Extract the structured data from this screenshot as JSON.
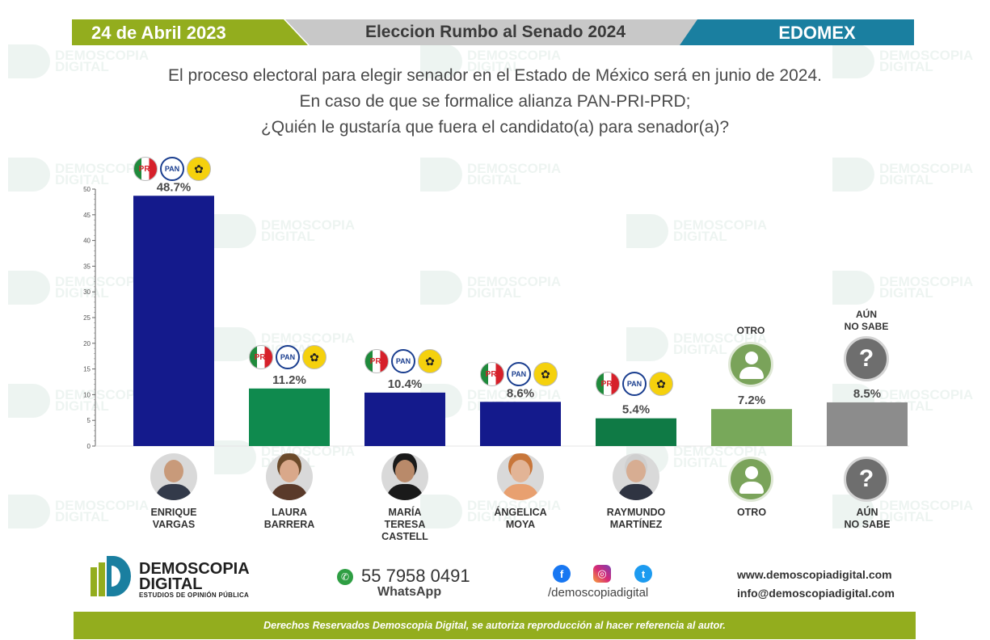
{
  "header": {
    "date": "24 de Abril 2023",
    "title": "Eleccion Rumbo al Senado 2024",
    "state": "EDOMEX"
  },
  "question": {
    "line1": "El proceso electoral para elegir senador en el Estado de México será en junio de 2024.",
    "line2": "En caso de que se formalice alianza PAN-PRI-PRD;",
    "line3": "¿Quién le gustaría que fuera el candidato(a) para senador(a)?"
  },
  "watermark": {
    "line1": "DEMOSCOPIA",
    "line2": "DIGITAL"
  },
  "parties": {
    "pri": "PRI",
    "pan": "PAN",
    "prd": "✿"
  },
  "chart_data": {
    "type": "bar",
    "categories": [
      "ENRIQUE\nVARGAS",
      "LAURA\nBARRERA",
      "MARÍA\nTERESA\nCASTELL",
      "ÁNGELICA\nMOYA",
      "RAYMUNDO\nMARTÍNEZ",
      "OTRO",
      "AÚN\nNO SABE"
    ],
    "values": [
      48.7,
      11.2,
      10.4,
      8.6,
      5.4,
      7.2,
      8.5
    ],
    "value_labels": [
      "48.7%",
      "11.2%",
      "10.4%",
      "8.6%",
      "5.4%",
      "7.2%",
      "8.5%"
    ],
    "colors": [
      "#141a8c",
      "#0f8a4e",
      "#141a8c",
      "#141a8c",
      "#0f7a45",
      "#78a85a",
      "#8c8c8c"
    ],
    "ylim": [
      0,
      50
    ],
    "yticks": [
      0,
      5,
      10,
      15,
      20,
      25,
      30,
      35,
      40,
      45,
      50
    ],
    "grid": false
  },
  "top_labels": {
    "otro": "OTRO",
    "no_sabe": "AÚN\nNO SABE"
  },
  "icons": {
    "question_mark": "?"
  },
  "footer": {
    "brand_name": "DEMOSCOPIA\nDIGITAL",
    "brand_sub": "ESTUDIOS DE OPINIÓN PÚBLICA",
    "phone": "55 7958 0491",
    "whatsapp_label": "WhatsApp",
    "social_handle": "/demoscopiadigital",
    "website": "www.demoscopiadigital.com",
    "email": "info@demoscopiadigital.com",
    "rights": "Derechos Reservados Demoscopia Digital, se autoriza reproducción al hacer referencia al autor.",
    "fb": "f",
    "ig": "◎",
    "tw": "t",
    "wa": "✆"
  }
}
